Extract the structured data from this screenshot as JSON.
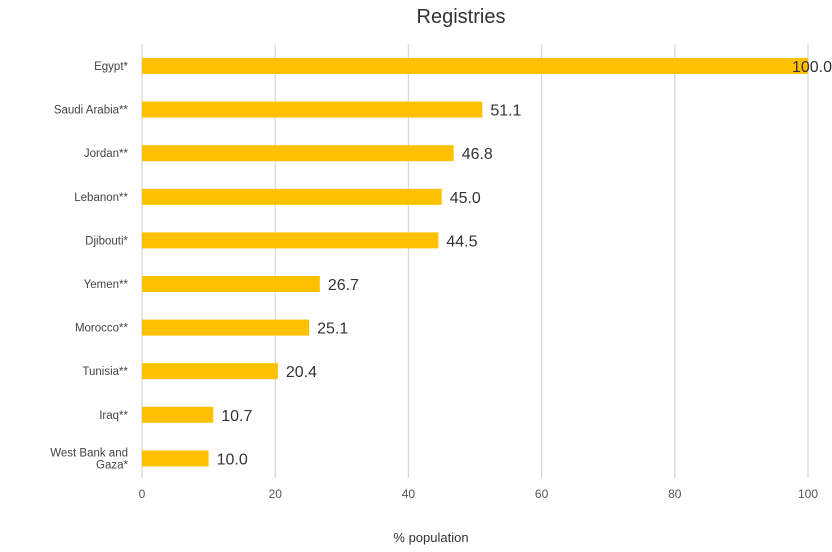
{
  "chart_data": {
    "type": "bar",
    "orientation": "horizontal",
    "title": "Registries",
    "xlabel": "% population",
    "ylabel": "",
    "xlim": [
      0,
      100
    ],
    "xticks": [
      "0",
      "20",
      "40",
      "60",
      "80",
      "100"
    ],
    "grid": true,
    "legend": "none",
    "bar_color": "#FFC000",
    "categories": [
      "Egypt*",
      "Saudi Arabia**",
      "Jordan**",
      "Lebanon**",
      "Djibouti*",
      "Yemen**",
      "Morocco**",
      "Tunisia**",
      "Iraq**",
      "West Bank and Gaza*"
    ],
    "category_lines": [
      [
        "Egypt*"
      ],
      [
        "Saudi Arabia**"
      ],
      [
        "Jordan**"
      ],
      [
        "Lebanon**"
      ],
      [
        "Djibouti*"
      ],
      [
        "Yemen**"
      ],
      [
        "Morocco**"
      ],
      [
        "Tunisia**"
      ],
      [
        "Iraq**"
      ],
      [
        "West Bank and",
        "Gaza*"
      ]
    ],
    "values": [
      100.0,
      51.1,
      46.8,
      45.0,
      44.5,
      26.7,
      25.1,
      20.4,
      10.7,
      10.0
    ],
    "value_labels": [
      "100.0",
      "51.1",
      "46.8",
      "45.0",
      "44.5",
      "26.7",
      "25.1",
      "20.4",
      "10.7",
      "10.0"
    ]
  }
}
